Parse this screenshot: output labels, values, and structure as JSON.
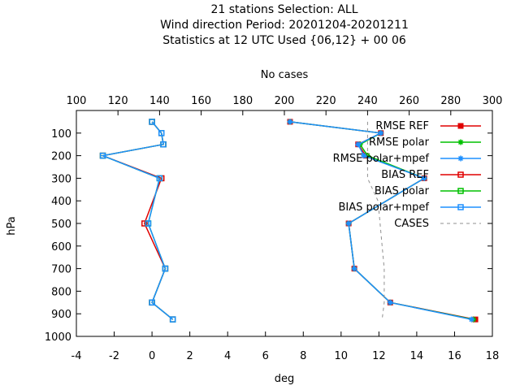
{
  "title_lines": [
    "21 stations Selection: ALL",
    "Wind direction  Period: 20201204-20201211",
    "Statistics at 12 UTC  Used {06,12} + 00 06"
  ],
  "colors": {
    "rmse_ref": "#e00000",
    "rmse_polar": "#00c000",
    "rmse_polar_mpef": "#1e90ff",
    "bias_ref": "#e00000",
    "bias_polar": "#00c000",
    "bias_polar_mpef": "#1e90ff",
    "cases": "#909090"
  },
  "chart_data": {
    "type": "line",
    "xlabel": "deg",
    "ylabel": "hPa",
    "x2label": "No cases",
    "xlim": [
      -4,
      18
    ],
    "x2lim": [
      100,
      300
    ],
    "ylim": [
      1000,
      0
    ],
    "x_ticks": [
      "-4",
      "-2",
      "0",
      "2",
      "4",
      "6",
      "8",
      "10",
      "12",
      "14",
      "16",
      "18"
    ],
    "x2_ticks": [
      "100",
      "120",
      "140",
      "160",
      "180",
      "200",
      "220",
      "240",
      "260",
      "280",
      "300"
    ],
    "y_ticks": [
      "100",
      "200",
      "300",
      "400",
      "500",
      "600",
      "700",
      "800",
      "900",
      "1000"
    ],
    "legend_position": "top-right",
    "series": [
      {
        "name": "RMSE REF",
        "key": "rmse_ref",
        "axis": "x",
        "style": "line-point",
        "marker": "filled-square",
        "points": [
          [
            7.3,
            50
          ],
          [
            12.1,
            100
          ],
          [
            10.9,
            150
          ],
          [
            11.3,
            200
          ],
          [
            14.4,
            300
          ],
          [
            10.4,
            500
          ],
          [
            10.7,
            700
          ],
          [
            12.6,
            850
          ],
          [
            17.1,
            925
          ]
        ]
      },
      {
        "name": "RMSE polar",
        "key": "rmse_polar",
        "axis": "x",
        "style": "line-point",
        "marker": "star",
        "points": [
          [
            7.3,
            50
          ],
          [
            12.1,
            100
          ],
          [
            11.0,
            150
          ],
          [
            11.4,
            200
          ],
          [
            14.4,
            300
          ],
          [
            10.4,
            500
          ],
          [
            10.7,
            700
          ],
          [
            12.6,
            850
          ],
          [
            17.0,
            925
          ]
        ]
      },
      {
        "name": "RMSE polar+mpef",
        "key": "rmse_polar_mpef",
        "axis": "x",
        "style": "line-point",
        "marker": "star",
        "points": [
          [
            7.3,
            50
          ],
          [
            12.1,
            100
          ],
          [
            10.9,
            150
          ],
          [
            11.2,
            200
          ],
          [
            14.4,
            300
          ],
          [
            10.4,
            500
          ],
          [
            10.7,
            700
          ],
          [
            12.6,
            850
          ],
          [
            16.9,
            925
          ]
        ]
      },
      {
        "name": "BIAS REF",
        "key": "bias_ref",
        "axis": "x",
        "style": "line-point",
        "marker": "open-square",
        "points": [
          [
            0.0,
            50
          ],
          [
            0.5,
            100
          ],
          [
            0.6,
            150
          ],
          [
            -2.6,
            200
          ],
          [
            0.5,
            300
          ],
          [
            -0.4,
            500
          ],
          [
            0.7,
            700
          ],
          [
            0.0,
            850
          ],
          [
            1.1,
            925
          ]
        ]
      },
      {
        "name": "BIAS polar",
        "key": "bias_polar",
        "axis": "x",
        "style": "line-point",
        "marker": "open-square",
        "points": [
          [
            0.0,
            50
          ],
          [
            0.5,
            100
          ],
          [
            0.6,
            150
          ],
          [
            -2.6,
            200
          ],
          [
            0.4,
            300
          ],
          [
            -0.2,
            500
          ],
          [
            0.7,
            700
          ],
          [
            0.0,
            850
          ],
          [
            1.1,
            925
          ]
        ]
      },
      {
        "name": "BIAS polar+mpef",
        "key": "bias_polar_mpef",
        "axis": "x",
        "style": "line-point",
        "marker": "open-square",
        "points": [
          [
            0.0,
            50
          ],
          [
            0.5,
            100
          ],
          [
            0.6,
            150
          ],
          [
            -2.6,
            200
          ],
          [
            0.4,
            300
          ],
          [
            -0.2,
            500
          ],
          [
            0.7,
            700
          ],
          [
            0.0,
            850
          ],
          [
            1.1,
            925
          ]
        ]
      },
      {
        "name": "CASES",
        "key": "cases",
        "axis": "x2",
        "style": "dashed",
        "points": [
          [
            240,
            50
          ],
          [
            240,
            100
          ],
          [
            240,
            150
          ],
          [
            240,
            200
          ],
          [
            240,
            300
          ],
          [
            245,
            400
          ],
          [
            246,
            500
          ],
          [
            247,
            600
          ],
          [
            248,
            700
          ],
          [
            248,
            800
          ],
          [
            248,
            850
          ],
          [
            247,
            925
          ]
        ]
      }
    ]
  }
}
